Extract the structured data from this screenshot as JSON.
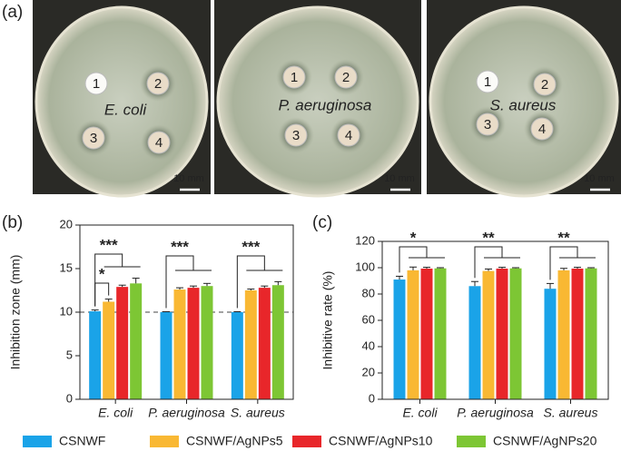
{
  "photos": {
    "label": "(a)",
    "dishes": [
      {
        "organism": "E. coli",
        "discs": [
          "1",
          "2",
          "3",
          "4"
        ],
        "scale": "10 mm"
      },
      {
        "organism": "P. aeruginosa",
        "discs": [
          "1",
          "2",
          "3",
          "4"
        ],
        "scale": "10 mm"
      },
      {
        "organism": "S. aureus",
        "discs": [
          "1",
          "2",
          "3",
          "4"
        ],
        "scale": "10 mm"
      }
    ]
  },
  "chart_data": [
    {
      "type": "bar",
      "label": "(b)",
      "y_label": "Inhibition zone (mm)",
      "categories": [
        "E. coli",
        "P. aeruginosa",
        "S. aureus"
      ],
      "series": [
        {
          "name": "CSNWF",
          "color": "#1aa3e8",
          "values": [
            10.1,
            10.0,
            10.0
          ],
          "errors": [
            0.15,
            0.05,
            0.05
          ]
        },
        {
          "name": "CSNWF/AgNPs5",
          "color": "#f9b833",
          "values": [
            11.2,
            12.6,
            12.5
          ],
          "errors": [
            0.3,
            0.2,
            0.15
          ]
        },
        {
          "name": "CSNWF/AgNPs10",
          "color": "#e8262a",
          "values": [
            12.9,
            12.8,
            12.8
          ],
          "errors": [
            0.2,
            0.2,
            0.2
          ]
        },
        {
          "name": "CSNWF/AgNPs20",
          "color": "#7dc634",
          "values": [
            13.3,
            13.0,
            13.1
          ],
          "errors": [
            0.6,
            0.3,
            0.4
          ]
        }
      ],
      "ylim": [
        0,
        20
      ],
      "yticks": [
        0,
        5,
        10,
        15,
        20
      ],
      "refline": 10,
      "annotations": [
        "*",
        "***",
        "***",
        "***"
      ]
    },
    {
      "type": "bar",
      "label": "(c)",
      "y_label": "Inhibitive rate (%)",
      "categories": [
        "E. coli",
        "P. aeruginosa",
        "S. aureus"
      ],
      "series": [
        {
          "name": "CSNWF",
          "color": "#1aa3e8",
          "values": [
            91,
            86,
            84
          ],
          "errors": [
            2.5,
            3.5,
            4
          ]
        },
        {
          "name": "CSNWF/AgNPs5",
          "color": "#f9b833",
          "values": [
            98,
            97.5,
            98
          ],
          "errors": [
            2.5,
            1.5,
            1.5
          ]
        },
        {
          "name": "CSNWF/AgNPs10",
          "color": "#e8262a",
          "values": [
            99.3,
            99.3,
            99.3
          ],
          "errors": [
            1,
            1,
            1
          ]
        },
        {
          "name": "CSNWF/AgNPs20",
          "color": "#7dc634",
          "values": [
            99.5,
            99.5,
            99.5
          ],
          "errors": [
            0.5,
            0.5,
            0.5
          ]
        }
      ],
      "ylim": [
        0,
        120
      ],
      "yticks": [
        0,
        20,
        40,
        60,
        80,
        100,
        120
      ],
      "annotations": [
        "*",
        "**",
        "**"
      ]
    }
  ]
}
